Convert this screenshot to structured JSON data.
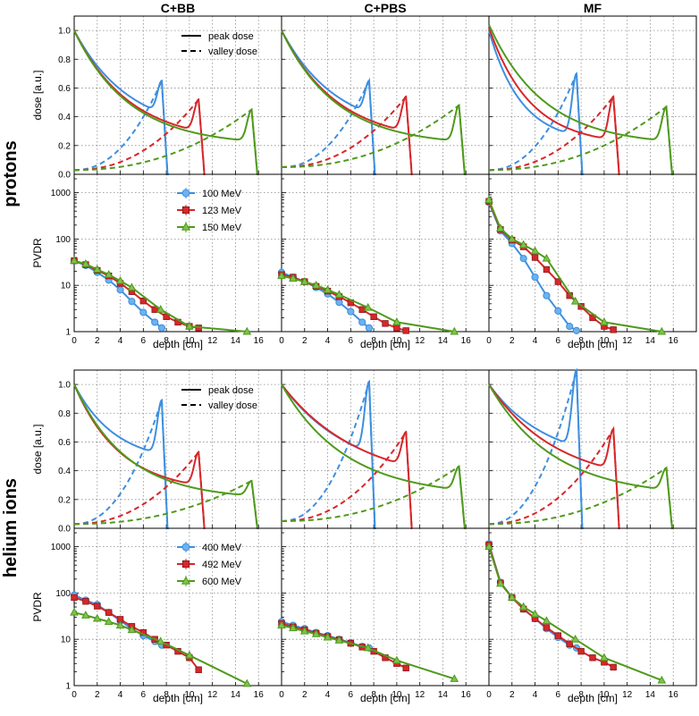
{
  "chart_data": {
    "type": "line",
    "column_titles": [
      "C+BB",
      "C+PBS",
      "MF"
    ],
    "row_titles": [
      "protons",
      "helium ions"
    ],
    "x_axis": {
      "label": "depth [cm]",
      "range": [
        0,
        18
      ],
      "ticks": [
        "0",
        "2",
        "4",
        "6",
        "8",
        "10",
        "12",
        "14",
        "16"
      ]
    },
    "dose_axis": {
      "label": "dose [a.u.]",
      "range": [
        0,
        1.1
      ],
      "ticks": [
        "0.0",
        "0.2",
        "0.4",
        "0.6",
        "0.8",
        "1.0"
      ]
    },
    "pvdr_axis": {
      "label": "PVDR",
      "scale": "log",
      "range": [
        1,
        2500
      ],
      "ticks": [
        "1",
        "10",
        "100",
        "1000"
      ]
    },
    "dose_legend": {
      "peak": "peak dose",
      "valley": "valley dose"
    },
    "series_colors": [
      "#3d8fe0",
      "#d6272a",
      "#4f9a1c"
    ],
    "markers": [
      "circle",
      "square",
      "triangle"
    ],
    "groups": [
      {
        "name": "protons",
        "energies": [
          "100 MeV",
          "123 MeV",
          "150 MeV"
        ],
        "peak_positions": [
          7.6,
          10.8,
          15.4
        ],
        "peak_heights": {
          "C+BB": [
            0.65,
            0.52,
            0.45
          ],
          "C+PBS": [
            0.65,
            0.54,
            0.48
          ],
          "MF": [
            0.7,
            0.54,
            0.47
          ]
        },
        "peak_entrance": {
          "C+BB": [
            1.0,
            1.0,
            1.0
          ],
          "C+PBS": [
            1.0,
            1.0,
            1.0
          ],
          "MF": [
            1.0,
            1.02,
            1.04
          ]
        },
        "peak_decay": {
          "C+BB": [
            0.21,
            0.21,
            0.21
          ],
          "C+PBS": [
            0.21,
            0.21,
            0.21
          ],
          "MF": [
            0.36,
            0.28,
            0.21
          ]
        },
        "peak_floor": {
          "C+BB": [
            0.28,
            0.22,
            0.2
          ],
          "C+PBS": [
            0.28,
            0.22,
            0.2
          ],
          "MF": [
            0.22,
            0.2,
            0.2
          ]
        },
        "valley_start": {
          "C+BB": 0.03,
          "C+PBS": 0.05,
          "MF": 0.03
        },
        "pvdr": {
          "C+BB": [
            {
              "x": [
                0,
                1,
                2,
                3,
                4,
                5,
                6,
                7,
                7.6
              ],
              "y": [
                34,
                27,
                19,
                13,
                8,
                4.5,
                2.6,
                1.6,
                1.2
              ]
            },
            {
              "x": [
                0,
                1,
                2,
                3,
                4,
                5,
                6,
                7,
                8,
                9,
                10,
                10.8
              ],
              "y": [
                34,
                28,
                21,
                16,
                11,
                7.3,
                4.6,
                3,
                2.1,
                1.6,
                1.3,
                1.2
              ]
            },
            {
              "x": [
                0,
                1,
                2,
                3,
                4,
                5,
                7.5,
                10,
                15
              ],
              "y": [
                34,
                29,
                22,
                17,
                12.5,
                9,
                3,
                1.3,
                1.0
              ]
            }
          ],
          "C+PBS": [
            {
              "x": [
                0,
                1,
                2,
                3,
                4,
                5,
                6,
                7,
                7.6
              ],
              "y": [
                19,
                15,
                12,
                9,
                6.5,
                4.3,
                2.7,
                1.6,
                1.2
              ]
            },
            {
              "x": [
                0,
                1,
                2,
                3,
                4,
                5,
                6,
                7,
                8,
                9,
                10,
                10.8
              ],
              "y": [
                17,
                15,
                12,
                9.5,
                7.5,
                5.7,
                4.2,
                3,
                2.1,
                1.5,
                1.2,
                1.05
              ]
            },
            {
              "x": [
                0,
                1,
                2,
                3,
                4,
                5,
                7.5,
                10,
                15
              ],
              "y": [
                16,
                14,
                12,
                10,
                8,
                6.3,
                3.3,
                1.6,
                1.0
              ]
            }
          ],
          "MF": [
            {
              "x": [
                0,
                1,
                2,
                3,
                4,
                5,
                6,
                7,
                7.6
              ],
              "y": [
                620,
                150,
                80,
                38,
                15,
                6,
                2.8,
                1.3,
                1.05
              ]
            },
            {
              "x": [
                0,
                1,
                2,
                3,
                4,
                5,
                6,
                7,
                8,
                9,
                10,
                10.8
              ],
              "y": [
                650,
                160,
                95,
                68,
                40,
                22,
                12,
                6,
                3.5,
                2,
                1.3,
                1.1
              ]
            },
            {
              "x": [
                0,
                1,
                2,
                3,
                4,
                5,
                7.5,
                10,
                15
              ],
              "y": [
                700,
                170,
                100,
                75,
                55,
                38,
                4.5,
                1.6,
                1.0
              ]
            }
          ]
        }
      },
      {
        "name": "helium ions",
        "energies": [
          "400 MeV",
          "492 MeV",
          "600 MeV"
        ],
        "peak_positions": [
          7.6,
          10.8,
          15.4
        ],
        "peak_heights": {
          "C+BB": [
            0.89,
            0.53,
            0.33
          ],
          "C+PBS": [
            1.02,
            0.67,
            0.43
          ],
          "MF": [
            1.1,
            0.69,
            0.42
          ]
        },
        "peak_entrance": {
          "C+BB": [
            1.0,
            1.0,
            1.0
          ],
          "C+PBS": [
            1.0,
            1.0,
            1.0
          ],
          "MF": [
            1.0,
            1.0,
            1.0
          ]
        },
        "peak_decay": {
          "C+BB": [
            0.28,
            0.25,
            0.22
          ],
          "C+PBS": [
            0.17,
            0.15,
            0.18
          ],
          "MF": [
            0.2,
            0.17,
            0.18
          ]
        },
        "peak_floor": {
          "C+BB": [
            0.45,
            0.25,
            0.2
          ],
          "C+PBS": [
            0.35,
            0.3,
            0.22
          ],
          "MF": [
            0.45,
            0.3,
            0.22
          ]
        },
        "valley_start": {
          "C+BB": 0.03,
          "C+PBS": 0.05,
          "MF": 0.03
        },
        "pvdr": {
          "C+BB": [
            {
              "x": [
                0,
                1,
                2,
                3,
                4,
                5,
                6,
                7,
                7.6
              ],
              "y": [
                90,
                70,
                56,
                38,
                25,
                17,
                12,
                9,
                7.5
              ]
            },
            {
              "x": [
                0,
                1,
                2,
                3,
                4,
                5,
                6,
                7,
                8,
                9,
                10,
                10.8
              ],
              "y": [
                80,
                66,
                52,
                38,
                27,
                19,
                14,
                10,
                7.5,
                5.5,
                4,
                2.2
              ]
            },
            {
              "x": [
                0,
                1,
                2,
                3,
                4,
                5,
                7.5,
                10,
                15
              ],
              "y": [
                38,
                33,
                28,
                24,
                20,
                16,
                9,
                4.5,
                1.1
              ]
            }
          ],
          "C+PBS": [
            {
              "x": [
                0,
                1,
                2,
                3,
                4,
                5,
                6,
                7,
                7.6
              ],
              "y": [
                24,
                20,
                17,
                14,
                12,
                10,
                8.5,
                7,
                6.5
              ]
            },
            {
              "x": [
                0,
                1,
                2,
                3,
                4,
                5,
                6,
                7,
                8,
                9,
                10,
                10.8
              ],
              "y": [
                22,
                18.5,
                16,
                13.5,
                11.5,
                9.8,
                8.2,
                6.8,
                5.5,
                4,
                3,
                2.4
              ]
            },
            {
              "x": [
                0,
                1,
                2,
                3,
                4,
                5,
                7.5,
                10,
                15
              ],
              "y": [
                20,
                17.5,
                15,
                13,
                11,
                9.5,
                6.5,
                3.5,
                1.4
              ]
            }
          ],
          "MF": [
            {
              "x": [
                0,
                1,
                2,
                3,
                4,
                5,
                6,
                7,
                7.6
              ],
              "y": [
                1150,
                170,
                80,
                45,
                28,
                17,
                11,
                7.5,
                6.5
              ]
            },
            {
              "x": [
                0,
                1,
                2,
                3,
                4,
                5,
                6,
                7,
                8,
                9,
                10,
                10.8
              ],
              "y": [
                1100,
                165,
                80,
                45,
                28,
                18,
                12,
                8,
                5.5,
                4,
                3.2,
                2.5
              ]
            },
            {
              "x": [
                0,
                1,
                2,
                3,
                4,
                5,
                7.5,
                10,
                15
              ],
              "y": [
                1000,
                160,
                80,
                50,
                35,
                25,
                10,
                4,
                1.3
              ]
            }
          ]
        }
      }
    ]
  }
}
